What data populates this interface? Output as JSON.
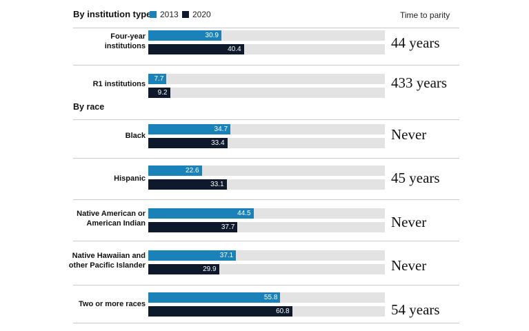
{
  "legend": {
    "title": "By institution type",
    "items": [
      {
        "label": "2013",
        "color": "#1a82b8"
      },
      {
        "label": "2020",
        "color": "#0e1a2b"
      }
    ],
    "parity_header": "Time to parity"
  },
  "sections": [
    {
      "title": "By institution type"
    },
    {
      "title": "By race"
    }
  ],
  "chart_data": {
    "type": "bar",
    "orientation": "horizontal",
    "categories": [
      "Four-year\ninstitutions",
      "R1 institutions",
      "Black",
      "Hispanic",
      "Native American or\nAmerican Indian",
      "Native Hawaiian and\nother Pacific Islander",
      "Two or more races"
    ],
    "series": [
      {
        "name": "2013",
        "color": "#1a82b8",
        "values": [
          30.9,
          7.7,
          34.7,
          22.6,
          44.5,
          37.1,
          55.8
        ],
        "labels": [
          "30.9",
          "7.7",
          "34.7",
          "22.6",
          "44.5",
          "37.1",
          "55.8"
        ]
      },
      {
        "name": "2020",
        "color": "#0e1a2b",
        "values": [
          40.4,
          9.2,
          33.4,
          33.1,
          37.7,
          29.9,
          60.8
        ],
        "labels": [
          "40.4",
          "9.2",
          "33.4",
          "33.1",
          "37.7",
          "29.9",
          "60.8"
        ]
      }
    ],
    "time_to_parity": [
      "44 years",
      "433 years",
      "Never",
      "45 years",
      "Never",
      "Never",
      "54 years"
    ],
    "xlim": [
      0,
      100
    ],
    "track_color": "#e3e3e3",
    "grid": false
  }
}
